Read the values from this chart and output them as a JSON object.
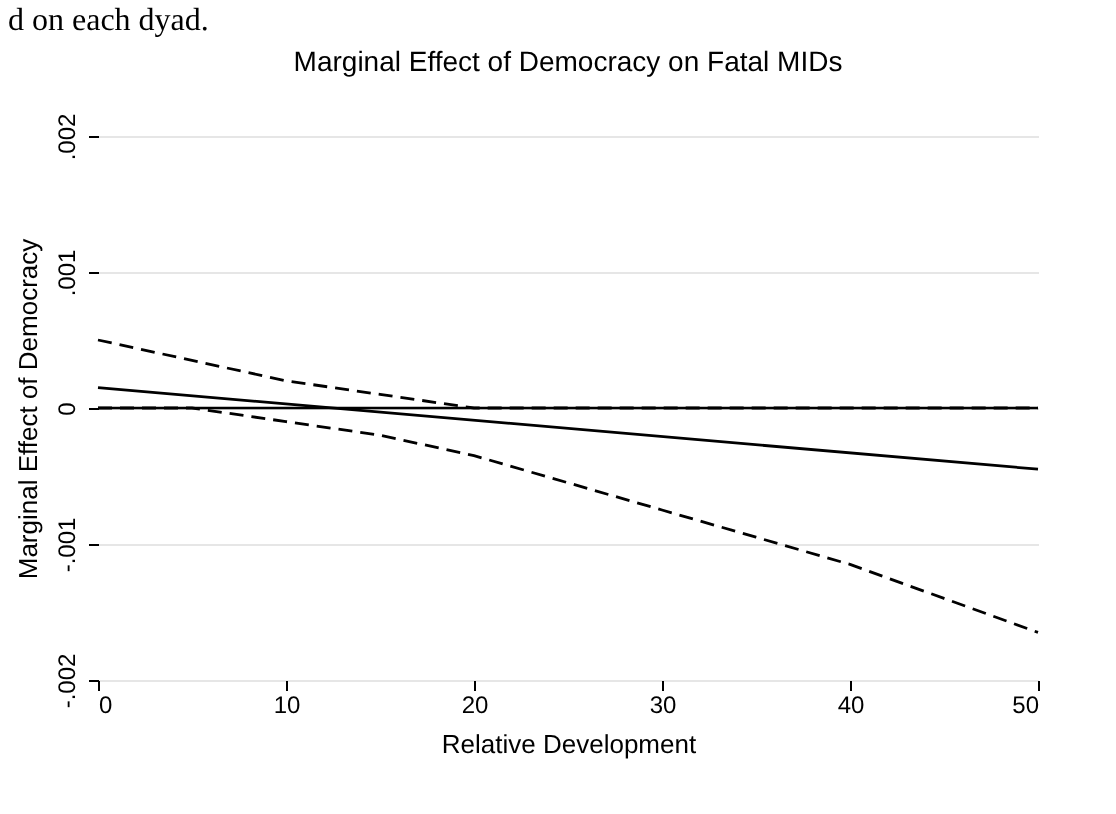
{
  "chart_data": {
    "type": "line",
    "title": "Marginal Effect of Democracy on Fatal MIDs",
    "xlabel": "Relative Development",
    "ylabel": "Marginal Effect of Democracy",
    "annotations": [
      "d on each dyad."
    ],
    "x": [
      0,
      5,
      10,
      15,
      20,
      25,
      30,
      35,
      40,
      45,
      50
    ],
    "series": [
      {
        "color": "#000000",
        "x": [
          0,
          50
        ],
        "values": [
          0.00015,
          -0.00045
        ]
      },
      {
        "color": "#000000",
        "line_style": "dashed",
        "values": [
          0.0005,
          0.00035,
          0.0002,
          0.0001,
          0,
          0,
          0,
          0,
          0,
          0,
          0
        ]
      },
      {
        "color": "#000000",
        "line_style": "dashed",
        "values": [
          0,
          0,
          -0.0001,
          -0.0002,
          -0.00035,
          -0.00055,
          -0.00075,
          -0.00095,
          -0.00115,
          -0.0014,
          -0.00165
        ]
      }
    ],
    "xlim": [
      0,
      50
    ],
    "xticks": [
      0,
      10,
      20,
      30,
      40,
      50
    ],
    "ylim": [
      -0.002,
      0.002
    ],
    "yticks": [
      {
        "value": -0.002,
        "label": "-.002"
      },
      {
        "value": -0.001,
        "label": "-.001"
      },
      0,
      {
        "value": 0.001,
        "label": ".001"
      },
      {
        "value": 0.002,
        "label": ".002"
      }
    ],
    "grid": "y",
    "ref_lines": [
      {
        "axis": "y",
        "value": 0,
        "color": "#000000"
      }
    ]
  }
}
